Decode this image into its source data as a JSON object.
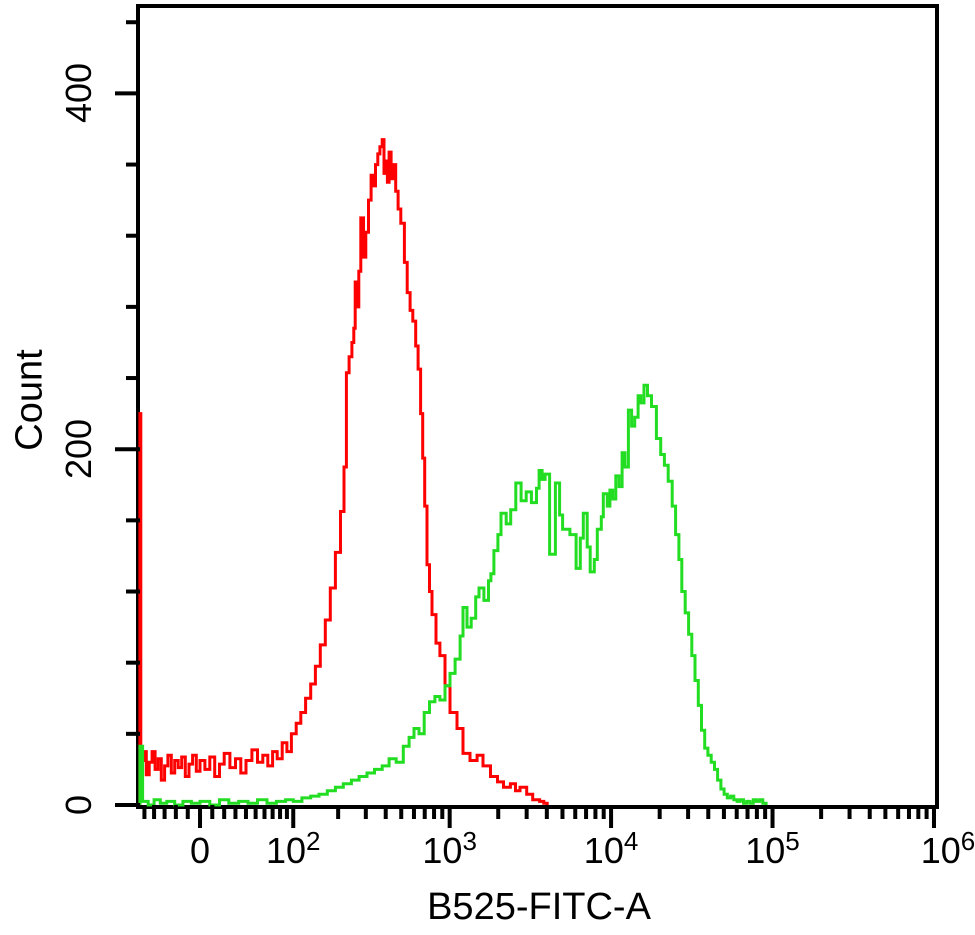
{
  "figure": {
    "background": "#ffffff",
    "border_color": "#000000"
  },
  "y_axis": {
    "title": "Count",
    "major_ticks": [
      {
        "value": 0,
        "label": "0"
      },
      {
        "value": 200,
        "label": "200"
      },
      {
        "value": 400,
        "label": "400"
      }
    ],
    "minor_ticks": [
      40,
      80,
      120,
      160,
      240,
      280,
      320,
      360,
      440
    ]
  },
  "x_axis": {
    "title": "B525-FITC-A",
    "major_ticks": [
      {
        "value": 0,
        "label": "0"
      },
      {
        "value": 100,
        "label": "10",
        "sup": "2"
      },
      {
        "value": 1000,
        "label": "10",
        "sup": "3"
      },
      {
        "value": 10000,
        "label": "10",
        "sup": "4"
      },
      {
        "value": 100000,
        "label": "10",
        "sup": "5"
      },
      {
        "value": 1000000,
        "label": "10",
        "sup": "6",
        "dx": 14
      }
    ],
    "minor_ticks": [
      -50,
      -40,
      -30,
      -20,
      -10,
      10,
      20,
      30,
      40,
      50,
      60,
      70,
      80,
      90,
      200,
      300,
      400,
      500,
      600,
      700,
      800,
      900,
      2000,
      3000,
      4000,
      5000,
      6000,
      7000,
      8000,
      9000,
      20000,
      30000,
      40000,
      50000,
      60000,
      70000,
      80000,
      90000,
      200000,
      300000,
      400000,
      500000,
      600000,
      700000,
      800000,
      900000
    ]
  },
  "chart_data": {
    "type": "line",
    "subtype": "flow-cytometry-histogram-overlay",
    "title": "",
    "xlabel": "B525-FITC-A",
    "ylabel": "Count",
    "ylim": [
      0,
      448
    ],
    "x_scale": {
      "type": "biexponential",
      "min": -55,
      "max": 1000000,
      "zero_frac": 0.0755,
      "asinh_coeff": 0.0882,
      "linear_width": 56.9
    },
    "series": [
      {
        "name": "red",
        "color": "#ff0000",
        "points": [
          [
            -55,
            220
          ],
          [
            -54,
            25
          ],
          [
            -51,
            30
          ],
          [
            -48,
            17
          ],
          [
            -45,
            24
          ],
          [
            -42,
            30
          ],
          [
            -39,
            20
          ],
          [
            -36,
            26
          ],
          [
            -33,
            14
          ],
          [
            -30,
            22
          ],
          [
            -27,
            28
          ],
          [
            -24,
            18
          ],
          [
            -21,
            25
          ],
          [
            -18,
            21
          ],
          [
            -15,
            27
          ],
          [
            -12,
            16
          ],
          [
            -9,
            23
          ],
          [
            -6,
            28
          ],
          [
            -3,
            19
          ],
          [
            0,
            25
          ],
          [
            4,
            20
          ],
          [
            8,
            27
          ],
          [
            12,
            16
          ],
          [
            16,
            23
          ],
          [
            20,
            29
          ],
          [
            25,
            21
          ],
          [
            30,
            26
          ],
          [
            35,
            18
          ],
          [
            40,
            25
          ],
          [
            46,
            31
          ],
          [
            52,
            24
          ],
          [
            58,
            28
          ],
          [
            64,
            22
          ],
          [
            70,
            30
          ],
          [
            76,
            26
          ],
          [
            83,
            35
          ],
          [
            90,
            30
          ],
          [
            97,
            40
          ],
          [
            105,
            46
          ],
          [
            113,
            52
          ],
          [
            122,
            60
          ],
          [
            132,
            68
          ],
          [
            142,
            78
          ],
          [
            153,
            90
          ],
          [
            165,
            104
          ],
          [
            178,
            122
          ],
          [
            192,
            142
          ],
          [
            207,
            165
          ],
          [
            218,
            190
          ],
          [
            226,
            243
          ],
          [
            235,
            252
          ],
          [
            245,
            260
          ],
          [
            252,
            268
          ],
          [
            257,
            294
          ],
          [
            263,
            280
          ],
          [
            271,
            300
          ],
          [
            279,
            330
          ],
          [
            290,
            308
          ],
          [
            300,
            322
          ],
          [
            312,
            340
          ],
          [
            324,
            354
          ],
          [
            334,
            348
          ],
          [
            345,
            360
          ],
          [
            357,
            366
          ],
          [
            368,
            370
          ],
          [
            380,
            374
          ],
          [
            390,
            355
          ],
          [
            400,
            362
          ],
          [
            410,
            350
          ],
          [
            420,
            367
          ],
          [
            432,
            352
          ],
          [
            447,
            360
          ],
          [
            462,
            345
          ],
          [
            478,
            335
          ],
          [
            497,
            327
          ],
          [
            523,
            305
          ],
          [
            545,
            288
          ],
          [
            568,
            278
          ],
          [
            590,
            272
          ],
          [
            615,
            258
          ],
          [
            637,
            245
          ],
          [
            660,
            220
          ],
          [
            680,
            195
          ],
          [
            700,
            168
          ],
          [
            723,
            135
          ],
          [
            750,
            120
          ],
          [
            777,
            107
          ],
          [
            822,
            91
          ],
          [
            870,
            84
          ],
          [
            936,
            67
          ],
          [
            1005,
            52
          ],
          [
            1110,
            43
          ],
          [
            1210,
            29
          ],
          [
            1337,
            25
          ],
          [
            1480,
            28
          ],
          [
            1610,
            22
          ],
          [
            1790,
            16
          ],
          [
            1980,
            13
          ],
          [
            2155,
            10
          ],
          [
            2380,
            12
          ],
          [
            2560,
            8
          ],
          [
            2730,
            10
          ],
          [
            3000,
            6
          ],
          [
            3270,
            3
          ],
          [
            3610,
            2
          ],
          [
            3830,
            1
          ],
          [
            4020,
            0
          ]
        ]
      },
      {
        "name": "green",
        "color": "#22dd22",
        "points": [
          [
            -55,
            33
          ],
          [
            -52,
            2
          ],
          [
            -46,
            0
          ],
          [
            -40,
            3
          ],
          [
            -34,
            1
          ],
          [
            -28,
            2
          ],
          [
            -21,
            0
          ],
          [
            -14,
            2
          ],
          [
            -7,
            1
          ],
          [
            0,
            2
          ],
          [
            8,
            0
          ],
          [
            16,
            3
          ],
          [
            24,
            1
          ],
          [
            33,
            2
          ],
          [
            42,
            1
          ],
          [
            52,
            3
          ],
          [
            63,
            1
          ],
          [
            75,
            2
          ],
          [
            88,
            3
          ],
          [
            100,
            2
          ],
          [
            115,
            4
          ],
          [
            132,
            5
          ],
          [
            150,
            6
          ],
          [
            170,
            8
          ],
          [
            192,
            10
          ],
          [
            216,
            12
          ],
          [
            243,
            14
          ],
          [
            272,
            16
          ],
          [
            305,
            18
          ],
          [
            340,
            20
          ],
          [
            380,
            22
          ],
          [
            420,
            26
          ],
          [
            465,
            24
          ],
          [
            515,
            33
          ],
          [
            560,
            38
          ],
          [
            600,
            43
          ],
          [
            645,
            40
          ],
          [
            695,
            52
          ],
          [
            750,
            58
          ],
          [
            810,
            61
          ],
          [
            870,
            59
          ],
          [
            935,
            67
          ],
          [
            1005,
            74
          ],
          [
            1080,
            82
          ],
          [
            1160,
            95
          ],
          [
            1210,
            111
          ],
          [
            1280,
            100
          ],
          [
            1360,
            105
          ],
          [
            1450,
            117
          ],
          [
            1520,
            122
          ],
          [
            1630,
            115
          ],
          [
            1740,
            126
          ],
          [
            1800,
            130
          ],
          [
            1880,
            143
          ],
          [
            1990,
            152
          ],
          [
            2080,
            164
          ],
          [
            2240,
            158
          ],
          [
            2390,
            166
          ],
          [
            2570,
            181
          ],
          [
            2770,
            171
          ],
          [
            2980,
            176
          ],
          [
            3210,
            170
          ],
          [
            3450,
            178
          ],
          [
            3580,
            188
          ],
          [
            3740,
            183
          ],
          [
            3900,
            186
          ],
          [
            4160,
            141
          ],
          [
            4520,
            181
          ],
          [
            4800,
            163
          ],
          [
            5010,
            155
          ],
          [
            5560,
            152
          ],
          [
            6070,
            133
          ],
          [
            6450,
            150
          ],
          [
            6730,
            164
          ],
          [
            7110,
            145
          ],
          [
            7430,
            131
          ],
          [
            7870,
            138
          ],
          [
            8220,
            155
          ],
          [
            8700,
            162
          ],
          [
            8950,
            175
          ],
          [
            9470,
            168
          ],
          [
            9840,
            177
          ],
          [
            10230,
            172
          ],
          [
            10700,
            185
          ],
          [
            11200,
            179
          ],
          [
            11700,
            198
          ],
          [
            12200,
            190
          ],
          [
            12800,
            222
          ],
          [
            13400,
            213
          ],
          [
            14000,
            218
          ],
          [
            14700,
            230
          ],
          [
            15300,
            226
          ],
          [
            16000,
            236
          ],
          [
            16800,
            230
          ],
          [
            17800,
            224
          ],
          [
            19100,
            206
          ],
          [
            20300,
            197
          ],
          [
            21400,
            191
          ],
          [
            22600,
            182
          ],
          [
            23900,
            168
          ],
          [
            25100,
            152
          ],
          [
            26300,
            138
          ],
          [
            27400,
            120
          ],
          [
            28800,
            108
          ],
          [
            30200,
            96
          ],
          [
            31600,
            84
          ],
          [
            33100,
            70
          ],
          [
            34700,
            56
          ],
          [
            36300,
            42
          ],
          [
            38000,
            32
          ],
          [
            39800,
            28
          ],
          [
            41700,
            24
          ],
          [
            43700,
            20
          ],
          [
            45700,
            14
          ],
          [
            47900,
            9
          ],
          [
            50100,
            6
          ],
          [
            52500,
            4
          ],
          [
            55000,
            5
          ],
          [
            57600,
            3
          ],
          [
            60300,
            2
          ],
          [
            63100,
            3
          ],
          [
            66100,
            1
          ],
          [
            69200,
            2
          ],
          [
            72500,
            1
          ],
          [
            76000,
            3
          ],
          [
            79500,
            2
          ],
          [
            83200,
            3
          ],
          [
            87100,
            1
          ],
          [
            91200,
            0
          ]
        ]
      }
    ]
  }
}
